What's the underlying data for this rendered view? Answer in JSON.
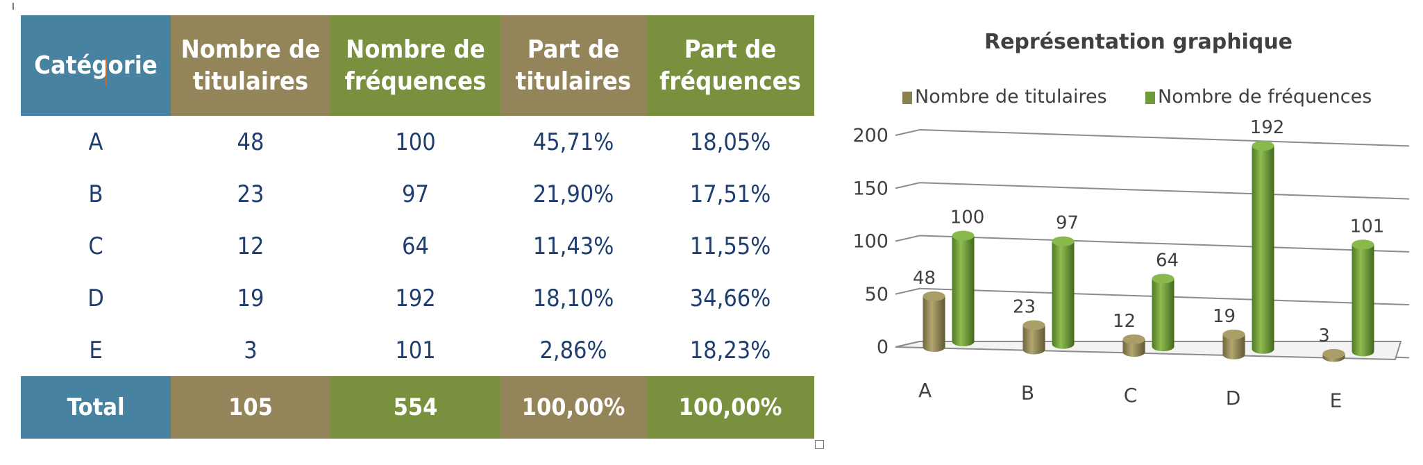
{
  "table": {
    "headers": [
      "Catégorie",
      "Nombre de\ntitulaires",
      "Nombre de\nfréquences",
      "Part de\ntitulaires",
      "Part de\nfréquences"
    ],
    "header_colors": [
      "#4782a0",
      "#938559",
      "#79913f",
      "#938559",
      "#79913f"
    ],
    "rows": [
      [
        "A",
        "48",
        "100",
        "45,71%",
        "18,05%"
      ],
      [
        "B",
        "23",
        "97",
        "21,90%",
        "17,51%"
      ],
      [
        "C",
        "12",
        "64",
        "11,43%",
        "11,55%"
      ],
      [
        "D",
        "19",
        "192",
        "18,10%",
        "34,66%"
      ],
      [
        "E",
        "3",
        "101",
        "2,86%",
        "18,23%"
      ]
    ],
    "total": [
      "Total",
      "105",
      "554",
      "100,00%",
      "100,00%"
    ]
  },
  "chart_data": {
    "type": "bar",
    "title": "Représentation graphique",
    "categories": [
      "A",
      "B",
      "C",
      "D",
      "E"
    ],
    "series": [
      {
        "name": "Nombre de titulaires",
        "values": [
          48,
          23,
          12,
          19,
          3
        ],
        "color": "#8b8150"
      },
      {
        "name": "Nombre de fréquences",
        "values": [
          100,
          97,
          64,
          192,
          101
        ],
        "color": "#6f9a3a"
      }
    ],
    "ylim": [
      0,
      200
    ],
    "yticks": [
      "0",
      "50",
      "100",
      "150",
      "200"
    ],
    "data_labels": true,
    "grid": true,
    "legend": "top",
    "style": "3d-cylinder"
  }
}
